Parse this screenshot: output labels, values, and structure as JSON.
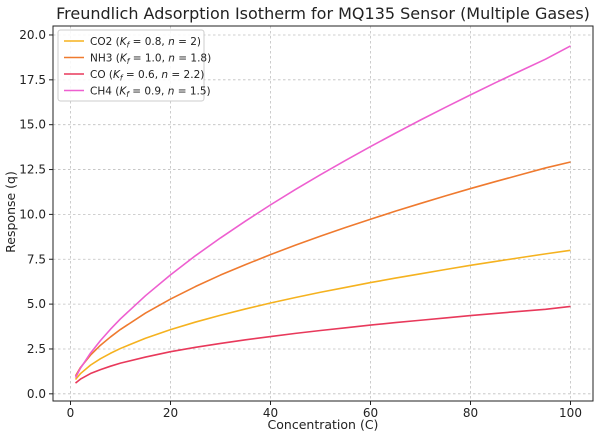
{
  "chart_data": {
    "type": "line",
    "title": "Freundlich Adsorption Isotherm for MQ135 Sensor (Multiple Gases)",
    "xlabel": "Concentration (C)",
    "ylabel": "Response (q)",
    "xlim": [
      -3.5,
      104.5
    ],
    "ylim": [
      -0.4,
      20.5
    ],
    "xticks": [
      0,
      20,
      40,
      60,
      80,
      100
    ],
    "xtick_labels": [
      "0",
      "20",
      "40",
      "60",
      "80",
      "100"
    ],
    "yticks": [
      0,
      2.5,
      5,
      7.5,
      10,
      12.5,
      15,
      17.5,
      20
    ],
    "ytick_labels": [
      "0.0",
      "2.5",
      "5.0",
      "7.5",
      "10.0",
      "12.5",
      "15.0",
      "17.5",
      "20.0"
    ],
    "grid": true,
    "legend_position": "top-left",
    "x": [
      1,
      2,
      4,
      6,
      8,
      10,
      15,
      20,
      25,
      30,
      35,
      40,
      45,
      50,
      55,
      60,
      65,
      70,
      75,
      80,
      85,
      90,
      95,
      100
    ],
    "series": [
      {
        "name": "CO2 ($K_f = 0.8, n = 2$)",
        "label_parts": {
          "gas": "CO2",
          "k": "0.8",
          "n": "2"
        },
        "color": "#f5b21f",
        "values": [
          0.8,
          1.13,
          1.6,
          1.96,
          2.26,
          2.53,
          3.1,
          3.58,
          4.0,
          4.38,
          4.73,
          5.06,
          5.37,
          5.66,
          5.93,
          6.2,
          6.45,
          6.69,
          6.93,
          7.16,
          7.38,
          7.59,
          7.8,
          8.0
        ]
      },
      {
        "name": "NH3 ($K_f = 1.0, n = 1.8$)",
        "label_parts": {
          "gas": "NH3",
          "k": "1.0",
          "n": "1.8"
        },
        "color": "#ef7a2f",
        "values": [
          1.0,
          1.47,
          2.16,
          2.71,
          3.17,
          3.59,
          4.5,
          5.28,
          5.98,
          6.62,
          7.2,
          7.76,
          8.29,
          8.79,
          9.27,
          9.73,
          10.18,
          10.61,
          11.03,
          11.44,
          11.83,
          12.21,
          12.59,
          12.92
        ]
      },
      {
        "name": "CO ($K_f = 0.6, n = 2.2$)",
        "label_parts": {
          "gas": "CO",
          "k": "0.6",
          "n": "2.2"
        },
        "color": "#e8395b",
        "values": [
          0.6,
          0.82,
          1.13,
          1.35,
          1.54,
          1.71,
          2.05,
          2.35,
          2.59,
          2.81,
          3.01,
          3.19,
          3.37,
          3.53,
          3.68,
          3.83,
          3.97,
          4.1,
          4.23,
          4.36,
          4.48,
          4.6,
          4.71,
          4.87
        ]
      },
      {
        "name": "CH4 ($K_f = 0.9, n = 1.5$)",
        "label_parts": {
          "gas": "CH4",
          "k": "0.9",
          "n": "1.5"
        },
        "color": "#ee5fd0",
        "values": [
          0.9,
          1.43,
          2.27,
          2.97,
          3.6,
          4.18,
          5.47,
          6.63,
          7.7,
          8.69,
          9.63,
          10.53,
          11.39,
          12.21,
          13.01,
          13.78,
          14.53,
          15.26,
          15.97,
          16.66,
          17.34,
          18.0,
          18.65,
          19.39
        ]
      }
    ]
  }
}
